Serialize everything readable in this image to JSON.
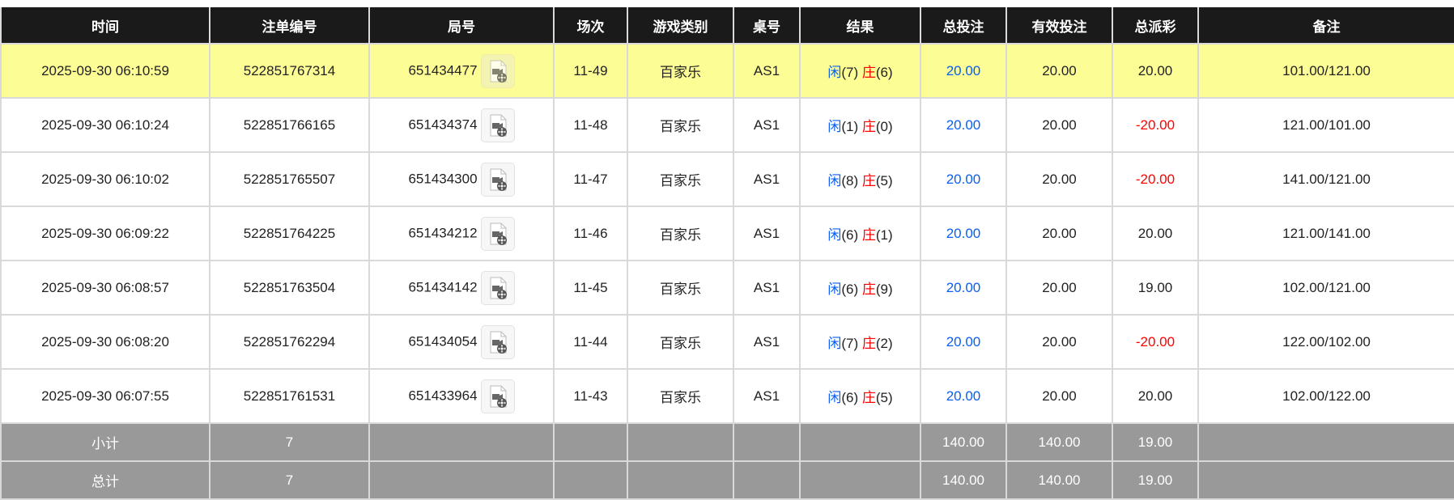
{
  "columns": [
    "时间",
    "注单编号",
    "局号",
    "场次",
    "游戏类别",
    "桌号",
    "结果",
    "总投注",
    "有效投注",
    "总派彩",
    "备注"
  ],
  "colors": {
    "header_bg": "#1a1a1a",
    "highlight_row": "#fdfd96",
    "summary_bg": "#999999",
    "player": "#0a5ef0",
    "banker": "#ff0000",
    "negative": "#ff0000"
  },
  "rows": [
    {
      "time": "2025-09-30 06:10:59",
      "bet_id": "522851767314",
      "round": "651434477",
      "shoe": "11-49",
      "game": "百家乐",
      "table": "AS1",
      "player_label": "闲",
      "player_score": "(7)",
      "banker_label": "庄",
      "banker_score": "(6)",
      "total_bet": "20.00",
      "valid_bet": "20.00",
      "payout": "20.00",
      "payout_negative": false,
      "note": "101.00/121.00",
      "highlighted": true
    },
    {
      "time": "2025-09-30 06:10:24",
      "bet_id": "522851766165",
      "round": "651434374",
      "shoe": "11-48",
      "game": "百家乐",
      "table": "AS1",
      "player_label": "闲",
      "player_score": "(1)",
      "banker_label": "庄",
      "banker_score": "(0)",
      "total_bet": "20.00",
      "valid_bet": "20.00",
      "payout": "-20.00",
      "payout_negative": true,
      "note": "121.00/101.00"
    },
    {
      "time": "2025-09-30 06:10:02",
      "bet_id": "522851765507",
      "round": "651434300",
      "shoe": "11-47",
      "game": "百家乐",
      "table": "AS1",
      "player_label": "闲",
      "player_score": "(8)",
      "banker_label": "庄",
      "banker_score": "(5)",
      "total_bet": "20.00",
      "valid_bet": "20.00",
      "payout": "-20.00",
      "payout_negative": true,
      "note": "141.00/121.00"
    },
    {
      "time": "2025-09-30 06:09:22",
      "bet_id": "522851764225",
      "round": "651434212",
      "shoe": "11-46",
      "game": "百家乐",
      "table": "AS1",
      "player_label": "闲",
      "player_score": "(6)",
      "banker_label": "庄",
      "banker_score": "(1)",
      "total_bet": "20.00",
      "valid_bet": "20.00",
      "payout": "20.00",
      "payout_negative": false,
      "note": "121.00/141.00"
    },
    {
      "time": "2025-09-30 06:08:57",
      "bet_id": "522851763504",
      "round": "651434142",
      "shoe": "11-45",
      "game": "百家乐",
      "table": "AS1",
      "player_label": "闲",
      "player_score": "(6)",
      "banker_label": "庄",
      "banker_score": "(9)",
      "total_bet": "20.00",
      "valid_bet": "20.00",
      "payout": "19.00",
      "payout_negative": false,
      "note": "102.00/121.00"
    },
    {
      "time": "2025-09-30 06:08:20",
      "bet_id": "522851762294",
      "round": "651434054",
      "shoe": "11-44",
      "game": "百家乐",
      "table": "AS1",
      "player_label": "闲",
      "player_score": "(7)",
      "banker_label": "庄",
      "banker_score": "(2)",
      "total_bet": "20.00",
      "valid_bet": "20.00",
      "payout": "-20.00",
      "payout_negative": true,
      "note": "122.00/102.00"
    },
    {
      "time": "2025-09-30 06:07:55",
      "bet_id": "522851761531",
      "round": "651433964",
      "shoe": "11-43",
      "game": "百家乐",
      "table": "AS1",
      "player_label": "闲",
      "player_score": "(6)",
      "banker_label": "庄",
      "banker_score": "(5)",
      "total_bet": "20.00",
      "valid_bet": "20.00",
      "payout": "20.00",
      "payout_negative": false,
      "note": "102.00/122.00"
    }
  ],
  "summary": [
    {
      "label": "小计",
      "count": "7",
      "total_bet": "140.00",
      "valid_bet": "140.00",
      "payout": "19.00"
    },
    {
      "label": "总计",
      "count": "7",
      "total_bet": "140.00",
      "valid_bet": "140.00",
      "payout": "19.00"
    }
  ]
}
